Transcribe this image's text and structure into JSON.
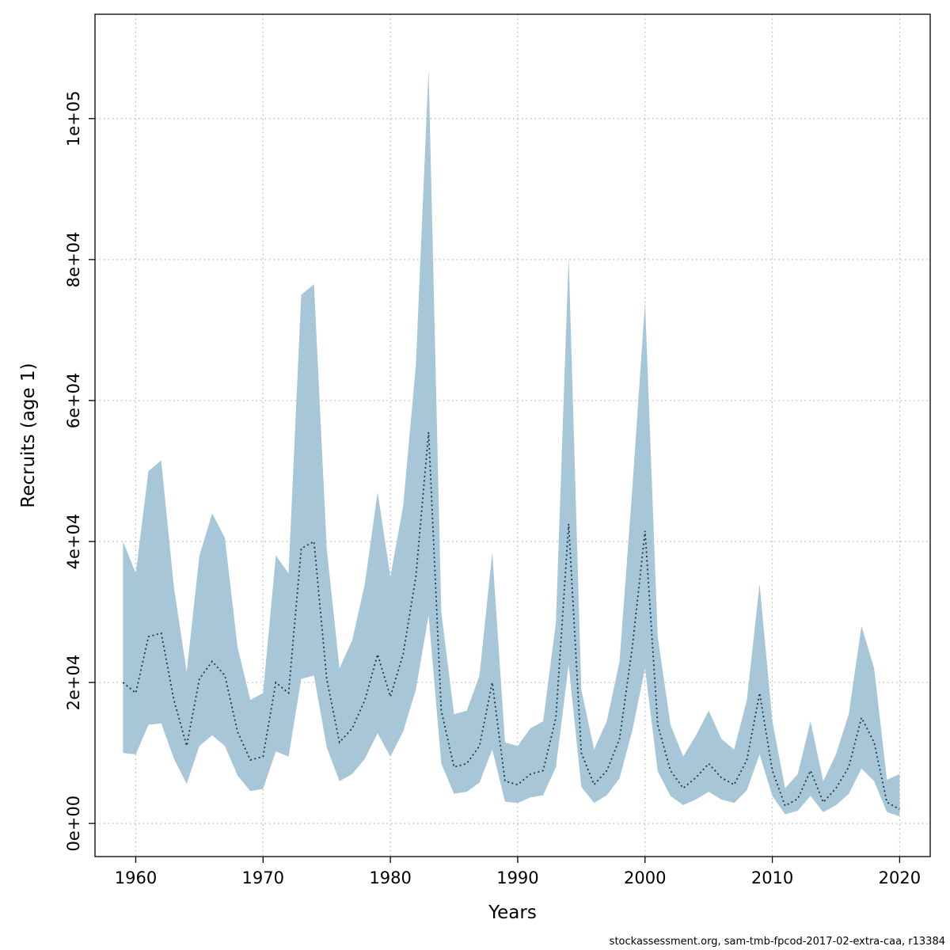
{
  "footer": {
    "text": "stockassessment.org, sam-tmb-fpcod-2017-02-extra-caa, r13384"
  },
  "chart_data": {
    "type": "area",
    "title": "",
    "xlabel": "Years",
    "ylabel": "Recruits (age 1)",
    "grid": true,
    "legend": "none",
    "xlim": [
      1956.8,
      2022.4
    ],
    "ylim": [
      -4700,
      114800
    ],
    "x_ticks": [
      1960,
      1970,
      1980,
      1990,
      2000,
      2010,
      2020
    ],
    "x_tick_labels": [
      "1960",
      "1970",
      "1980",
      "1990",
      "2000",
      "2010",
      "2020"
    ],
    "y_ticks": [
      0,
      20000,
      40000,
      60000,
      80000,
      100000
    ],
    "y_tick_labels": [
      "0e+00",
      "2e+04",
      "4e+04",
      "6e+04",
      "8e+04",
      "1e+05"
    ],
    "grid_color": "#b3b3b3",
    "band_color": "#a7c6d7",
    "line_color": "#16394c",
    "x": [
      1959,
      1960,
      1961,
      1962,
      1963,
      1964,
      1965,
      1966,
      1967,
      1968,
      1969,
      1970,
      1971,
      1972,
      1973,
      1974,
      1975,
      1976,
      1977,
      1978,
      1979,
      1980,
      1981,
      1982,
      1983,
      1984,
      1985,
      1986,
      1987,
      1988,
      1989,
      1990,
      1991,
      1992,
      1993,
      1994,
      1995,
      1996,
      1997,
      1998,
      1999,
      2000,
      2001,
      2002,
      2003,
      2004,
      2005,
      2006,
      2007,
      2008,
      2009,
      2010,
      2011,
      2012,
      2013,
      2014,
      2015,
      2016,
      2017,
      2018,
      2019,
      2020
    ],
    "series": [
      {
        "name": "median",
        "values": [
          20000,
          18500,
          26500,
          27000,
          17500,
          11000,
          20500,
          23000,
          21000,
          13000,
          9000,
          9500,
          20000,
          18500,
          39000,
          40000,
          20500,
          11500,
          13500,
          17500,
          24000,
          18000,
          24000,
          35000,
          55500,
          16000,
          8000,
          8500,
          11000,
          20000,
          6000,
          5500,
          7000,
          7500,
          15000,
          42500,
          10000,
          5500,
          7500,
          12000,
          25000,
          41500,
          14000,
          7500,
          5000,
          6500,
          8500,
          6500,
          5500,
          9000,
          18500,
          7500,
          2500,
          3500,
          7500,
          3000,
          5000,
          8000,
          15000,
          11500,
          3000,
          2000
        ]
      },
      {
        "name": "lower",
        "values": [
          10000,
          9800,
          14000,
          14200,
          9200,
          5600,
          11000,
          12500,
          11000,
          6800,
          4600,
          4900,
          10200,
          9500,
          20500,
          21000,
          10800,
          6000,
          7000,
          9200,
          12800,
          9500,
          13000,
          19000,
          29500,
          8500,
          4200,
          4500,
          5800,
          10500,
          3100,
          2900,
          3700,
          4000,
          8000,
          22500,
          5200,
          2900,
          4000,
          6400,
          13200,
          22000,
          7400,
          3900,
          2600,
          3400,
          4500,
          3400,
          2900,
          4700,
          9800,
          3900,
          1300,
          1800,
          3900,
          1600,
          2600,
          4200,
          7800,
          6000,
          1600,
          1000
        ]
      },
      {
        "name": "upper",
        "values": [
          40000,
          35500,
          50000,
          51500,
          33500,
          21500,
          38000,
          44000,
          40500,
          25000,
          17500,
          18500,
          38000,
          35500,
          75000,
          76500,
          39000,
          22000,
          26000,
          34000,
          47000,
          35000,
          45000,
          65000,
          107000,
          30000,
          15500,
          16000,
          21000,
          38500,
          11500,
          11000,
          13500,
          14500,
          28500,
          80500,
          19000,
          10500,
          14500,
          23000,
          47500,
          74000,
          26500,
          14000,
          9500,
          12500,
          16000,
          12000,
          10500,
          17500,
          34000,
          14500,
          5000,
          7000,
          14500,
          6000,
          9800,
          15500,
          28000,
          22000,
          6200,
          7000
        ]
      }
    ]
  }
}
